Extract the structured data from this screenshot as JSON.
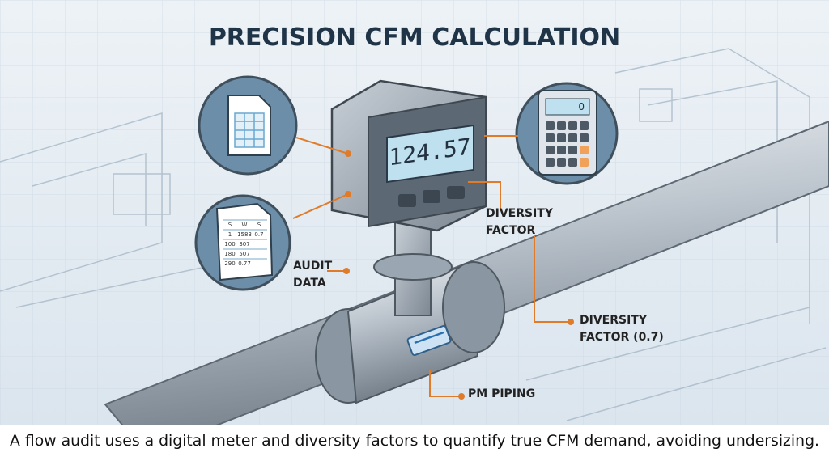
{
  "header": {
    "title": "PRECISION CFM CALCULATION"
  },
  "meter": {
    "display": "124.57"
  },
  "sheet": {
    "rows": [
      [
        "S",
        "W",
        "S"
      ],
      [
        "1",
        "1583",
        "0.7"
      ],
      [
        "100",
        "307",
        ""
      ],
      [
        "180",
        "507",
        ""
      ],
      [
        "290",
        "0.77",
        ""
      ]
    ]
  },
  "calculator": {
    "display": "0"
  },
  "callouts": [
    {
      "lines": [
        "DIVERSITY",
        "FACTOR"
      ]
    },
    {
      "lines": [
        "AUDIT",
        "DATA"
      ]
    },
    {
      "lines": [
        "DIVERSITY",
        "FACTOR (0.7)"
      ]
    },
    {
      "lines": [
        "PM PIPING"
      ]
    }
  ],
  "caption": "A flow audit uses a digital meter and diversity factors to quantify true CFM demand, avoiding undersizing."
}
